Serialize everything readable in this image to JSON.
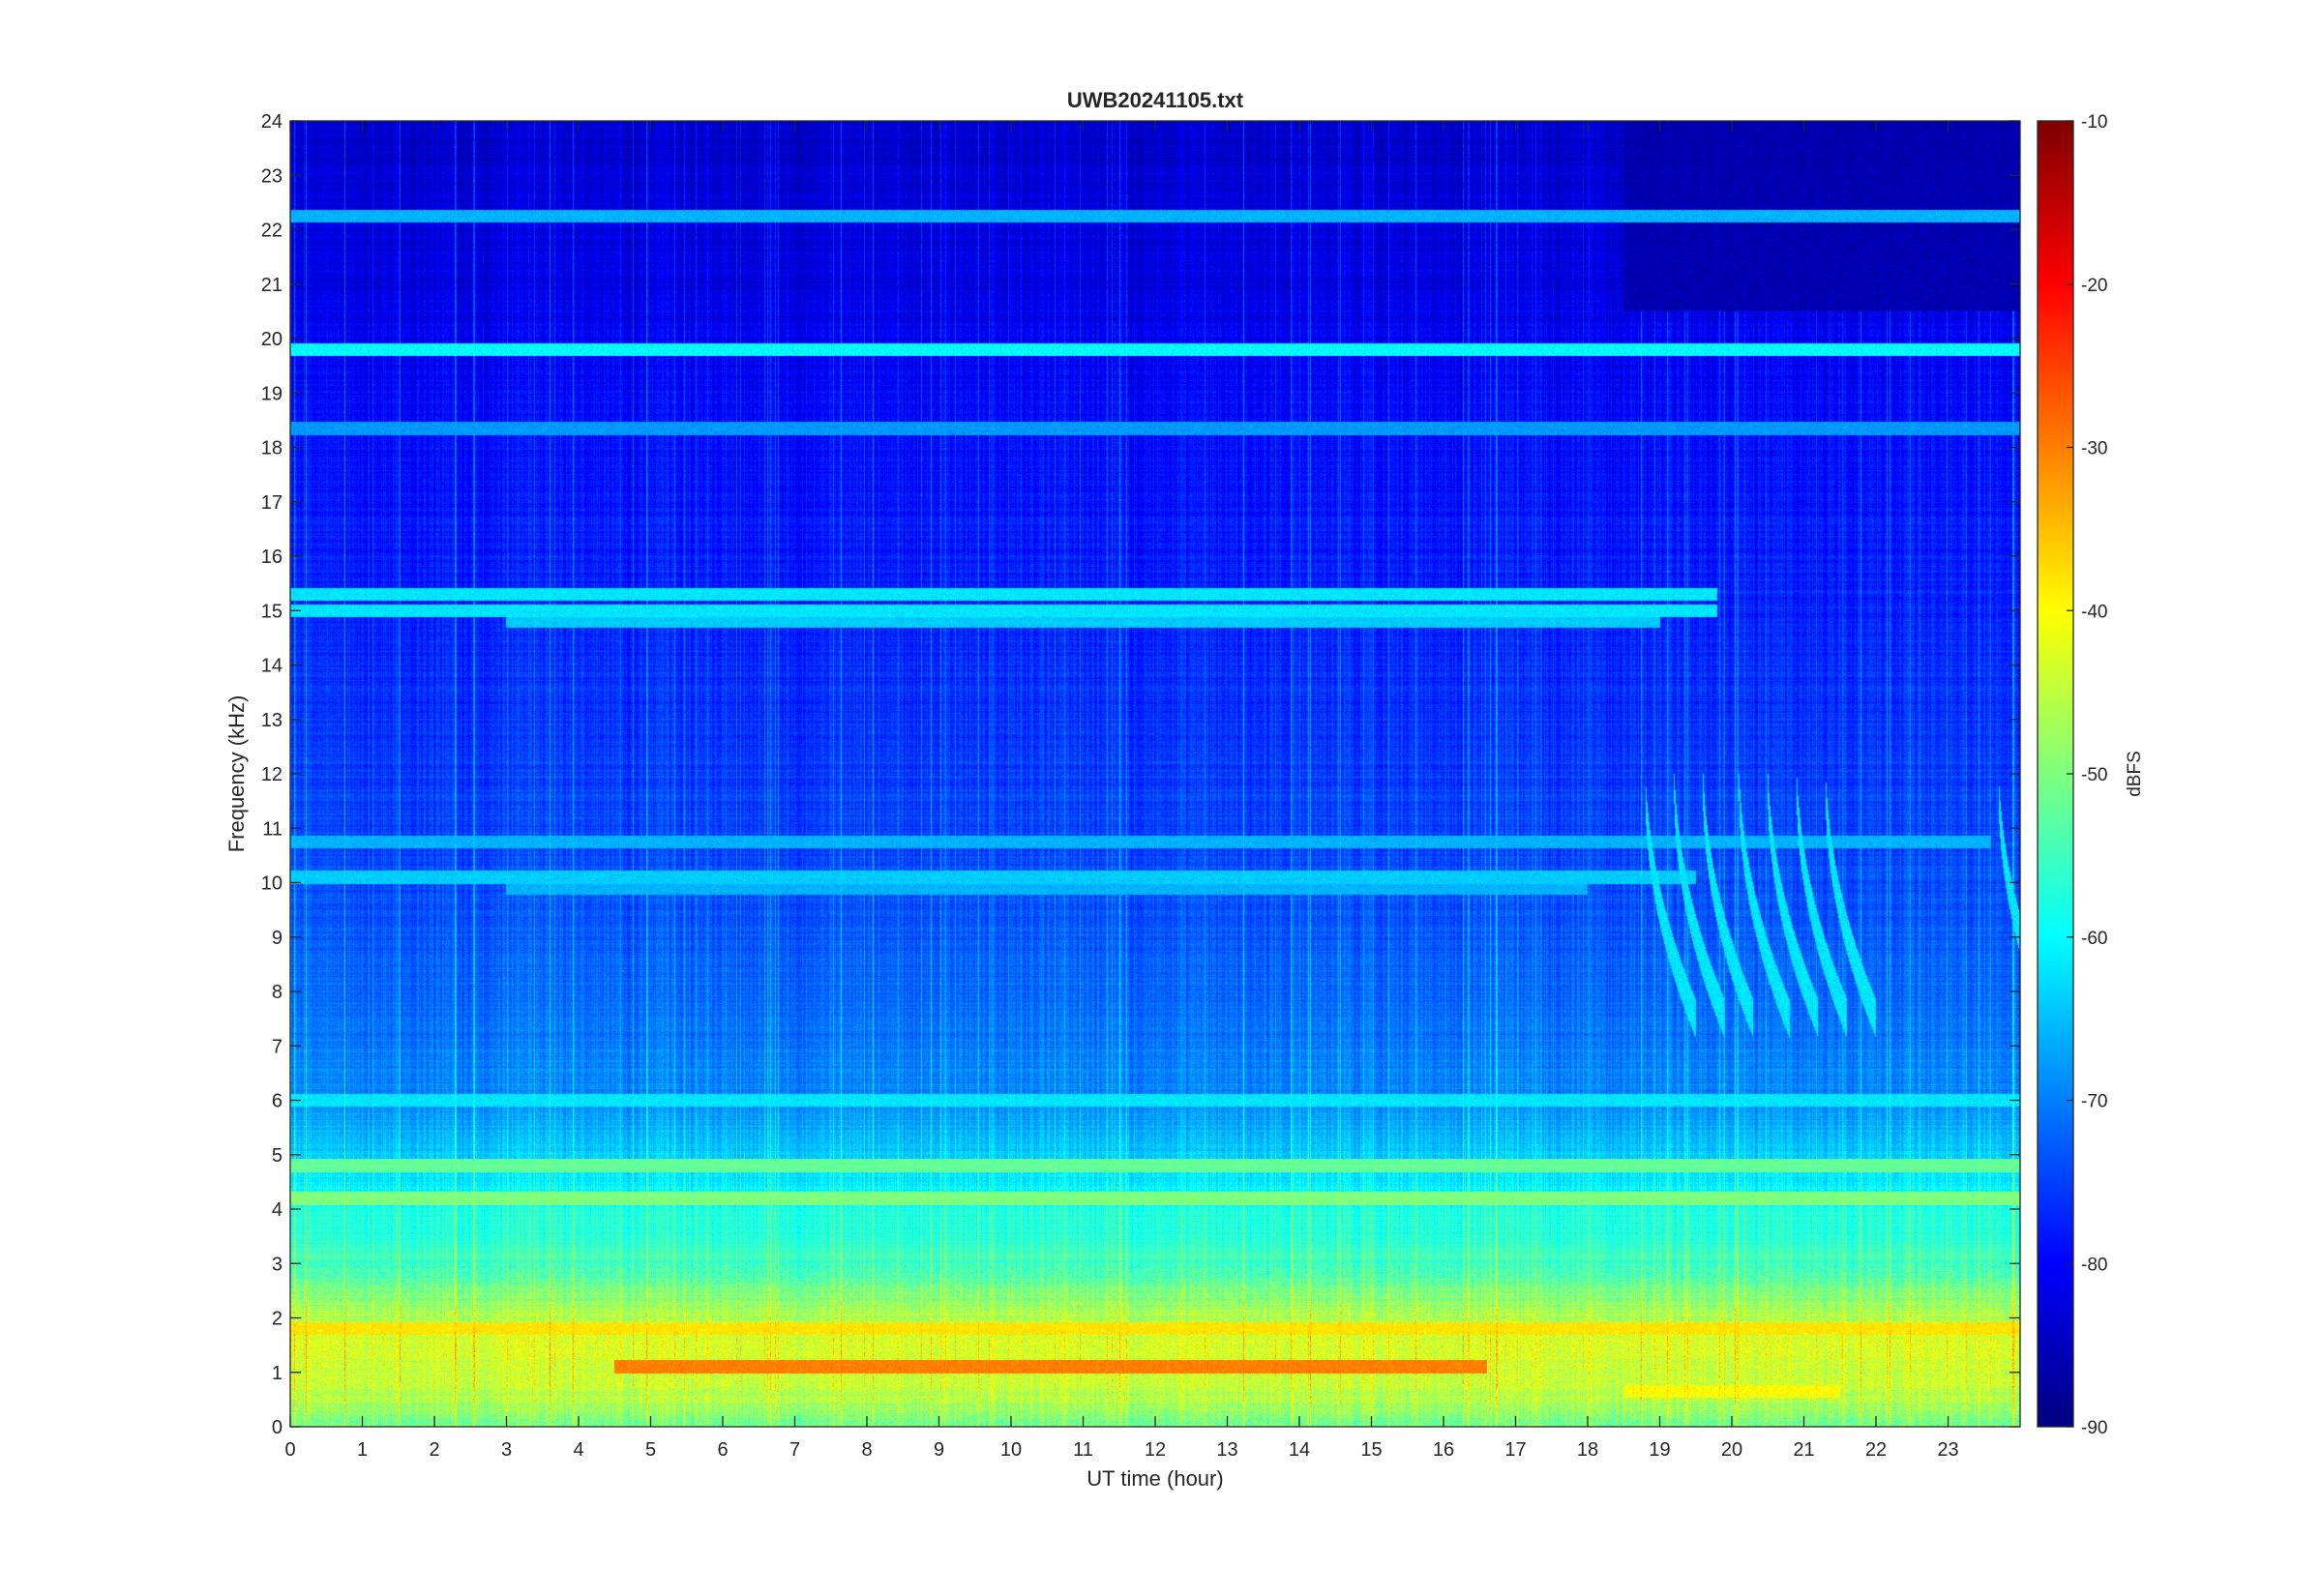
{
  "chart_data": {
    "type": "heatmap",
    "title": "UWB20241105.txt",
    "xlabel": "UT time (hour)",
    "ylabel": "Frequency (kHz)",
    "colorbar_label": "dBFS",
    "xlim": [
      0,
      24
    ],
    "ylim": [
      0,
      24
    ],
    "clim": [
      -90,
      -10
    ],
    "colormap": "jet",
    "x_ticks": [
      "0",
      "1",
      "2",
      "3",
      "4",
      "5",
      "6",
      "7",
      "8",
      "9",
      "10",
      "11",
      "12",
      "13",
      "14",
      "15",
      "16",
      "17",
      "18",
      "19",
      "20",
      "21",
      "22",
      "23"
    ],
    "y_ticks": [
      "0",
      "1",
      "2",
      "3",
      "4",
      "5",
      "6",
      "7",
      "8",
      "9",
      "10",
      "11",
      "12",
      "13",
      "14",
      "15",
      "16",
      "17",
      "18",
      "19",
      "20",
      "21",
      "22",
      "23",
      "24"
    ],
    "colorbar_ticks": [
      "-10",
      "-20",
      "-30",
      "-40",
      "-50",
      "-60",
      "-70",
      "-80",
      "-90"
    ],
    "background_profile_dbfs": [
      {
        "freq_khz": 0.0,
        "level": -52
      },
      {
        "freq_khz": 0.5,
        "level": -46
      },
      {
        "freq_khz": 1.0,
        "level": -44
      },
      {
        "freq_khz": 1.5,
        "level": -42
      },
      {
        "freq_khz": 2.0,
        "level": -46
      },
      {
        "freq_khz": 3.0,
        "level": -55
      },
      {
        "freq_khz": 4.0,
        "level": -58
      },
      {
        "freq_khz": 5.0,
        "level": -64
      },
      {
        "freq_khz": 6.0,
        "level": -69
      },
      {
        "freq_khz": 8.0,
        "level": -72
      },
      {
        "freq_khz": 10.0,
        "level": -74
      },
      {
        "freq_khz": 13.0,
        "level": -76
      },
      {
        "freq_khz": 16.0,
        "level": -78
      },
      {
        "freq_khz": 19.0,
        "level": -80
      },
      {
        "freq_khz": 21.0,
        "level": -82
      },
      {
        "freq_khz": 24.0,
        "level": -84
      }
    ],
    "horizontal_bands": [
      {
        "freq_khz": 22.25,
        "t_start": 0,
        "t_end": 24,
        "level": -66
      },
      {
        "freq_khz": 19.8,
        "t_start": 0,
        "t_end": 24,
        "level": -60
      },
      {
        "freq_khz": 18.35,
        "t_start": 0,
        "t_end": 24,
        "level": -68
      },
      {
        "freq_khz": 15.3,
        "t_start": 0,
        "t_end": 19.8,
        "level": -62
      },
      {
        "freq_khz": 15.0,
        "t_start": 0,
        "t_end": 19.8,
        "level": -62
      },
      {
        "freq_khz": 14.8,
        "t_start": 3,
        "t_end": 19.0,
        "level": -64
      },
      {
        "freq_khz": 10.75,
        "t_start": 0,
        "t_end": 23.6,
        "level": -66
      },
      {
        "freq_khz": 10.1,
        "t_start": 0,
        "t_end": 19.5,
        "level": -64
      },
      {
        "freq_khz": 9.9,
        "t_start": 3,
        "t_end": 18.0,
        "level": -66
      },
      {
        "freq_khz": 6.0,
        "t_start": 0,
        "t_end": 24,
        "level": -62
      },
      {
        "freq_khz": 4.8,
        "t_start": 0,
        "t_end": 24,
        "level": -52
      },
      {
        "freq_khz": 4.2,
        "t_start": 0,
        "t_end": 24,
        "level": -50
      },
      {
        "freq_khz": 1.8,
        "t_start": 0,
        "t_end": 24,
        "level": -38
      },
      {
        "freq_khz": 1.1,
        "t_start": 4.5,
        "t_end": 16.6,
        "level": -30
      },
      {
        "freq_khz": 0.65,
        "t_start": 18.5,
        "t_end": 21.5,
        "level": -40
      }
    ],
    "quiet_region": {
      "t_start": 18.5,
      "t_end": 24,
      "freq_min_khz": 20.5,
      "freq_max_khz": 24,
      "level": -86
    },
    "whistler_events_hour": [
      18.8,
      19.2,
      19.6,
      20.1,
      20.5,
      20.9,
      21.3,
      23.7
    ]
  }
}
